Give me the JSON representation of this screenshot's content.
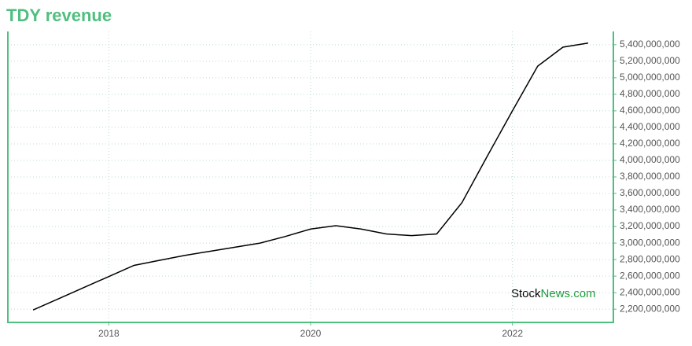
{
  "chart_data": {
    "type": "line",
    "title": "TDY revenue",
    "x": [
      2017.25,
      2017.5,
      2017.75,
      2018,
      2018.25,
      2018.5,
      2018.75,
      2019,
      2019.25,
      2019.5,
      2019.75,
      2020,
      2020.25,
      2020.5,
      2020.75,
      2021,
      2021.25,
      2021.5,
      2021.75,
      2022,
      2022.25,
      2022.5,
      2022.75
    ],
    "series": [
      {
        "name": "TDY revenue",
        "color": "#000000",
        "values": [
          2190000000,
          2325000000,
          2460000000,
          2595000000,
          2730000000,
          2790000000,
          2850000000,
          2900000000,
          2950000000,
          3000000000,
          3080000000,
          3170000000,
          3210000000,
          3170000000,
          3110000000,
          3090000000,
          3110000000,
          3490000000,
          4050000000,
          4600000000,
          5140000000,
          5370000000,
          5420000000
        ]
      }
    ],
    "xlim": [
      2017,
      2023
    ],
    "xticks": [
      2018,
      2020,
      2022
    ],
    "ylim": [
      2040000000,
      5560000000
    ],
    "yticks": [
      {
        "value": 2200000000,
        "label": "2,200,000,000"
      },
      {
        "value": 2400000000,
        "label": "2,400,000,000"
      },
      {
        "value": 2600000000,
        "label": "2,600,000,000"
      },
      {
        "value": 2800000000,
        "label": "2,800,000,000"
      },
      {
        "value": 3000000000,
        "label": "3,000,000,000"
      },
      {
        "value": 3200000000,
        "label": "3,200,000,000"
      },
      {
        "value": 3400000000,
        "label": "3,400,000,000"
      },
      {
        "value": 3600000000,
        "label": "3,600,000,000"
      },
      {
        "value": 3800000000,
        "label": "3,800,000,000"
      },
      {
        "value": 4000000000,
        "label": "4,000,000,000"
      },
      {
        "value": 4200000000,
        "label": "4,200,000,000"
      },
      {
        "value": 4400000000,
        "label": "4,400,000,000"
      },
      {
        "value": 4600000000,
        "label": "4,600,000,000"
      },
      {
        "value": 4800000000,
        "label": "4,800,000,000"
      },
      {
        "value": 5000000000,
        "label": "5,000,000,000"
      },
      {
        "value": 5200000000,
        "label": "5,200,000,000"
      },
      {
        "value": 5400000000,
        "label": "5,400,000,000"
      }
    ],
    "grid": true,
    "watermark_prefix": "Stock",
    "watermark_suffix": "News.com"
  }
}
